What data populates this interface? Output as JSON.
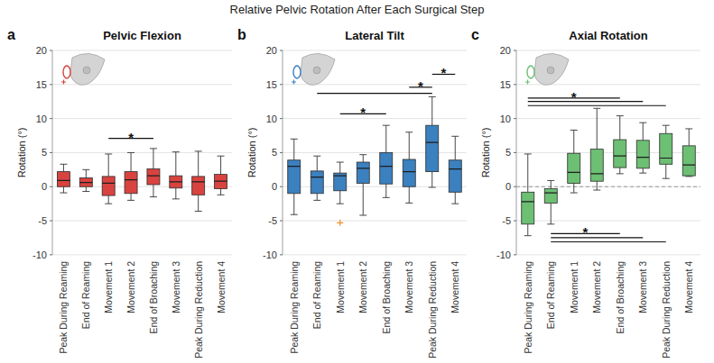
{
  "title": "Relative Pelvic Rotation After Each Surgical Step",
  "chart_data": [
    {
      "type": "box",
      "letter": "a",
      "title": "Pelvic Flexion",
      "y_label": "Rotation (°)",
      "categories": [
        "Peak During Reaming",
        "End of Reaming",
        "Movement 1",
        "Movement 2",
        "End of Broaching",
        "Movement 3",
        "Peak During Reduction",
        "Movement 4"
      ],
      "color": "#d9433f",
      "min": [
        -0.9,
        -0.7,
        -2.5,
        -2.0,
        -1.5,
        -1.8,
        -3.6,
        -1.2
      ],
      "q1": [
        0.0,
        0.0,
        -1.3,
        -1.0,
        0.3,
        -0.2,
        -1.2,
        -0.3
      ],
      "median": [
        0.9,
        0.6,
        0.5,
        1.0,
        1.6,
        0.7,
        0.7,
        0.8
      ],
      "q3": [
        2.2,
        1.3,
        1.5,
        2.2,
        2.6,
        1.6,
        1.5,
        1.8
      ],
      "max": [
        3.3,
        2.5,
        4.8,
        5.0,
        5.6,
        5.1,
        5.2,
        4.5
      ],
      "significance": [
        {
          "from": 2,
          "to": 4,
          "y": 7.1,
          "label": "*"
        }
      ],
      "ylim": [
        -10,
        20
      ],
      "yticks": [
        -10,
        -5,
        0,
        5,
        10,
        15,
        20
      ],
      "grid": true
    },
    {
      "type": "box",
      "letter": "b",
      "title": "Lateral Tilt",
      "y_label": "Rotation (°)",
      "categories": [
        "Peak During Reaming",
        "End of Reaming",
        "Movement 1",
        "Movement 2",
        "End of Broaching",
        "Movement 3",
        "Peak During Reduction",
        "Movement 4"
      ],
      "color": "#3b80bf",
      "min": [
        -4.1,
        -2.0,
        -2.5,
        -4.2,
        -1.6,
        -2.4,
        -0.1,
        -2.5
      ],
      "q1": [
        -1.0,
        -1.0,
        -0.6,
        0.5,
        0.4,
        0.0,
        2.2,
        -0.8
      ],
      "median": [
        3.0,
        1.4,
        1.6,
        2.7,
        3.0,
        2.2,
        6.5,
        2.6
      ],
      "q3": [
        3.9,
        2.3,
        2.0,
        3.6,
        5.0,
        4.0,
        9.0,
        3.9
      ],
      "max": [
        7.0,
        4.5,
        3.6,
        4.7,
        9.0,
        8.0,
        13.2,
        7.4
      ],
      "outliers": [
        {
          "index": 2,
          "value": -5.3,
          "color": "#f28e2b"
        }
      ],
      "significance": [
        {
          "from": 2,
          "to": 4,
          "y": 10.7,
          "label": "*"
        },
        {
          "from": 1,
          "to": 6,
          "y": 13.7
        },
        {
          "from": 5,
          "to": 6,
          "y": 14.6,
          "label": "*"
        },
        {
          "from": 6,
          "to": 7,
          "y": 16.5,
          "label": "*"
        }
      ],
      "ylim": [
        -10,
        20
      ],
      "yticks": [
        -10,
        -5,
        0,
        5,
        10,
        15,
        20
      ],
      "grid": true
    },
    {
      "type": "box",
      "letter": "c",
      "title": "Axial Rotation",
      "y_label": "Rotation (°)",
      "categories": [
        "Peak During Reaming",
        "End of Reaming",
        "Movement 1",
        "Movement 2",
        "End of Broaching",
        "Movement 3",
        "Peak During Reduction",
        "Movement 4"
      ],
      "color": "#6cbf73",
      "min": [
        -7.2,
        -5.5,
        -0.9,
        -0.5,
        1.9,
        2.0,
        1.2,
        1.5
      ],
      "q1": [
        -5.5,
        -2.4,
        0.5,
        0.8,
        2.8,
        2.7,
        3.3,
        1.6
      ],
      "median": [
        -2.2,
        -0.9,
        2.1,
        1.9,
        4.5,
        4.3,
        4.2,
        3.2
      ],
      "q3": [
        -0.8,
        -0.3,
        4.9,
        5.5,
        6.9,
        6.8,
        7.8,
        6.0
      ],
      "max": [
        4.8,
        0.9,
        8.3,
        11.5,
        10.4,
        9.4,
        9.0,
        8.5
      ],
      "reference_line": 0,
      "significance": [
        {
          "from": 0,
          "to": 4,
          "y": 13.0,
          "label": "*"
        },
        {
          "from": 0,
          "to": 5,
          "y": 12.5
        },
        {
          "from": 0,
          "to": 6,
          "y": 11.9
        },
        {
          "from": 1,
          "to": 4,
          "y": -6.9,
          "label": "*"
        },
        {
          "from": 1,
          "to": 5,
          "y": -7.5
        },
        {
          "from": 1,
          "to": 6,
          "y": -8.1
        }
      ],
      "ylim": [
        -10,
        20
      ],
      "yticks": [
        -10,
        -5,
        0,
        5,
        10,
        15,
        20
      ],
      "grid": true
    }
  ]
}
